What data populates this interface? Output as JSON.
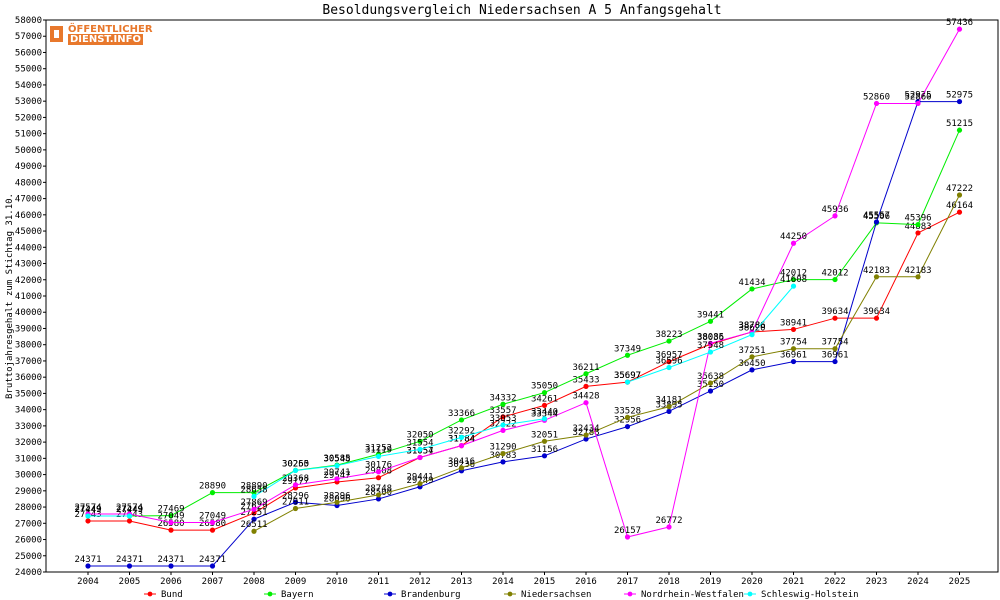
{
  "chart_data": {
    "type": "line",
    "title": "Besoldungsvergleich Niedersachsen A 5 Anfangsgehalt",
    "ylabel": "Bruttojahresgehalt zum Stichtag 31.10.",
    "xlabel": "",
    "ylim": [
      24000,
      58000
    ],
    "ytick_step": 1000,
    "grid": false,
    "legend_position": "bottom",
    "categories": [
      "2004",
      "2005",
      "2006",
      "2007",
      "2008",
      "2009",
      "2010",
      "2011",
      "2012",
      "2013",
      "2014",
      "2015",
      "2016",
      "2017",
      "2018",
      "2019",
      "2020",
      "2021",
      "2022",
      "2023",
      "2024",
      "2025"
    ],
    "series": [
      {
        "name": "Bund",
        "color": "#ff0000",
        "values": [
          27143,
          27143,
          26580,
          26580,
          27629,
          29177,
          29547,
          29808,
          31057,
          31784,
          33557,
          34261,
          35433,
          35697,
          36957,
          38036,
          38786,
          38941,
          39634,
          39634,
          44883,
          46164
        ]
      },
      {
        "name": "Bayern",
        "color": "#00ee00",
        "values": [
          27449,
          27449,
          27469,
          28890,
          28890,
          30260,
          30585,
          31252,
          32050,
          33366,
          34332,
          35050,
          36211,
          37349,
          38223,
          39441,
          41434,
          42012,
          42012,
          45506,
          45396,
          51215
        ]
      },
      {
        "name": "Brandenburg",
        "color": "#0000cc",
        "values": [
          24371,
          24371,
          24371,
          24371,
          27251,
          28296,
          28096,
          28500,
          29249,
          30236,
          30783,
          31156,
          32188,
          32956,
          33895,
          35150,
          36450,
          36961,
          36961,
          45557,
          52975,
          52975
        ]
      },
      {
        "name": "Niedersachsen",
        "color": "#808000",
        "values": [
          null,
          null,
          null,
          null,
          26511,
          27911,
          28296,
          28748,
          29441,
          30416,
          31290,
          32051,
          32434,
          33528,
          34181,
          35638,
          37251,
          37754,
          37754,
          42183,
          42183,
          47222
        ]
      },
      {
        "name": "Nordrhein-Westfalen",
        "color": "#ff00ff",
        "values": [
          27574,
          27574,
          27049,
          27049,
          27869,
          29368,
          29741,
          30176,
          31054,
          31784,
          32722,
          33344,
          34428,
          26157,
          26772,
          38085,
          38786,
          44250,
          45936,
          52860,
          52860,
          57436
        ]
      },
      {
        "name": "Schleswig-Holstein",
        "color": "#00ffff",
        "values": [
          27449,
          27449,
          null,
          null,
          28658,
          30255,
          30548,
          31119,
          31554,
          32292,
          33053,
          33440,
          null,
          35697,
          36596,
          37548,
          38620,
          41608,
          null,
          null,
          null,
          null
        ]
      }
    ],
    "data_labels": [
      {
        "series": 0,
        "values": [
          "27143",
          "27143",
          "26580",
          "26580",
          "27629",
          "29177",
          "29547",
          "29808",
          "31057",
          "31784",
          "33557",
          "34261",
          "35433",
          "35697",
          "36957",
          "38036",
          "38786",
          "38941",
          "39634",
          "39634",
          "44883",
          "46164"
        ]
      }
    ]
  }
}
